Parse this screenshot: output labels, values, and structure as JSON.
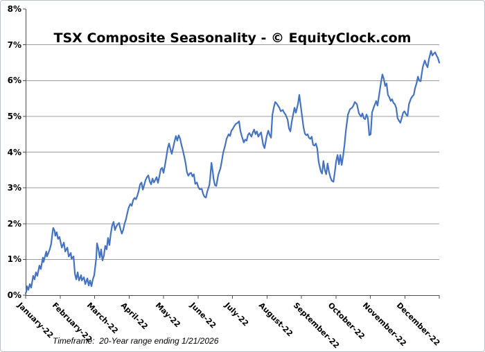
{
  "chart_data": {
    "type": "line",
    "title": "TSX Composite Seasonality - © EquityClock.com",
    "footnote": "Timeframe:  20-Year range ending 1/21/2026",
    "categories": [
      "January-22",
      "February-22",
      "March-22",
      "April-22",
      "May-22",
      "June-22",
      "July-22",
      "August-22",
      "September-22",
      "October-22",
      "November-22",
      "December-22"
    ],
    "y_tick_labels": [
      "0%",
      "1%",
      "2%",
      "3%",
      "4%",
      "5%",
      "6%",
      "7%",
      "8%"
    ],
    "ylim": [
      0,
      8
    ],
    "y_unit": "percent cumulative return",
    "x_unit": "month position (0-12)",
    "grid": "horizontal",
    "legend": "none",
    "line_color": "#4472c4",
    "points": [
      [
        0.0,
        0.05
      ],
      [
        0.02,
        0.1
      ],
      [
        0.04,
        0.25
      ],
      [
        0.08,
        0.15
      ],
      [
        0.12,
        0.31
      ],
      [
        0.16,
        0.21
      ],
      [
        0.22,
        0.54
      ],
      [
        0.26,
        0.44
      ],
      [
        0.3,
        0.64
      ],
      [
        0.34,
        0.54
      ],
      [
        0.4,
        0.83
      ],
      [
        0.44,
        0.73
      ],
      [
        0.5,
        1.05
      ],
      [
        0.52,
        0.93
      ],
      [
        0.6,
        1.22
      ],
      [
        0.62,
        1.08
      ],
      [
        0.7,
        1.28
      ],
      [
        0.74,
        1.43
      ],
      [
        0.78,
        1.75
      ],
      [
        0.8,
        1.88
      ],
      [
        0.84,
        1.8
      ],
      [
        0.86,
        1.66
      ],
      [
        0.9,
        1.76
      ],
      [
        0.94,
        1.57
      ],
      [
        0.98,
        1.63
      ],
      [
        1.05,
        1.33
      ],
      [
        1.11,
        1.47
      ],
      [
        1.15,
        1.22
      ],
      [
        1.21,
        1.33
      ],
      [
        1.25,
        1.08
      ],
      [
        1.31,
        1.18
      ],
      [
        1.33,
        1.02
      ],
      [
        1.39,
        1.08
      ],
      [
        1.43,
        0.6
      ],
      [
        1.47,
        0.44
      ],
      [
        1.51,
        0.64
      ],
      [
        1.55,
        0.41
      ],
      [
        1.61,
        0.56
      ],
      [
        1.63,
        0.41
      ],
      [
        1.69,
        0.5
      ],
      [
        1.73,
        0.31
      ],
      [
        1.79,
        0.47
      ],
      [
        1.83,
        0.27
      ],
      [
        1.87,
        0.41
      ],
      [
        1.91,
        0.25
      ],
      [
        1.95,
        0.44
      ],
      [
        1.99,
        0.56
      ],
      [
        2.05,
        1.05
      ],
      [
        2.07,
        1.45
      ],
      [
        2.11,
        1.3
      ],
      [
        2.15,
        1.05
      ],
      [
        2.19,
        1.28
      ],
      [
        2.23,
        0.97
      ],
      [
        2.27,
        1.1
      ],
      [
        2.31,
        1.38
      ],
      [
        2.35,
        1.28
      ],
      [
        2.39,
        1.6
      ],
      [
        2.43,
        1.4
      ],
      [
        2.47,
        1.72
      ],
      [
        2.51,
        1.95
      ],
      [
        2.55,
        2.05
      ],
      [
        2.59,
        1.82
      ],
      [
        2.63,
        1.92
      ],
      [
        2.67,
        1.98
      ],
      [
        2.71,
        2.02
      ],
      [
        2.75,
        1.85
      ],
      [
        2.79,
        1.72
      ],
      [
        2.83,
        1.82
      ],
      [
        2.87,
        2.0
      ],
      [
        2.91,
        2.12
      ],
      [
        2.95,
        2.3
      ],
      [
        2.99,
        2.45
      ],
      [
        3.04,
        2.55
      ],
      [
        3.08,
        2.5
      ],
      [
        3.12,
        2.66
      ],
      [
        3.16,
        2.72
      ],
      [
        3.2,
        2.68
      ],
      [
        3.24,
        2.78
      ],
      [
        3.28,
        2.92
      ],
      [
        3.32,
        3.1
      ],
      [
        3.36,
        3.15
      ],
      [
        3.4,
        2.95
      ],
      [
        3.44,
        3.08
      ],
      [
        3.48,
        3.22
      ],
      [
        3.52,
        3.3
      ],
      [
        3.56,
        3.35
      ],
      [
        3.6,
        3.18
      ],
      [
        3.64,
        3.1
      ],
      [
        3.68,
        3.26
      ],
      [
        3.72,
        3.15
      ],
      [
        3.76,
        3.22
      ],
      [
        3.8,
        3.3
      ],
      [
        3.84,
        3.14
      ],
      [
        3.88,
        3.32
      ],
      [
        3.92,
        3.52
      ],
      [
        3.96,
        3.56
      ],
      [
        4.0,
        3.42
      ],
      [
        4.04,
        3.62
      ],
      [
        4.08,
        3.85
      ],
      [
        4.12,
        4.1
      ],
      [
        4.16,
        4.24
      ],
      [
        4.2,
        4.08
      ],
      [
        4.24,
        3.95
      ],
      [
        4.28,
        4.12
      ],
      [
        4.32,
        4.3
      ],
      [
        4.36,
        4.45
      ],
      [
        4.4,
        4.32
      ],
      [
        4.44,
        4.47
      ],
      [
        4.48,
        4.38
      ],
      [
        4.52,
        4.2
      ],
      [
        4.56,
        4.05
      ],
      [
        4.6,
        3.88
      ],
      [
        4.64,
        3.7
      ],
      [
        4.68,
        3.44
      ],
      [
        4.72,
        3.34
      ],
      [
        4.76,
        3.4
      ],
      [
        4.8,
        3.42
      ],
      [
        4.84,
        3.32
      ],
      [
        4.88,
        3.38
      ],
      [
        4.92,
        3.11
      ],
      [
        4.97,
        3.15
      ],
      [
        5.01,
        3.02
      ],
      [
        5.05,
        2.96
      ],
      [
        5.11,
        2.97
      ],
      [
        5.15,
        2.83
      ],
      [
        5.19,
        2.75
      ],
      [
        5.23,
        2.73
      ],
      [
        5.27,
        2.9
      ],
      [
        5.33,
        3.08
      ],
      [
        5.35,
        3.25
      ],
      [
        5.39,
        3.7
      ],
      [
        5.43,
        3.45
      ],
      [
        5.45,
        3.27
      ],
      [
        5.49,
        3.08
      ],
      [
        5.53,
        3.05
      ],
      [
        5.59,
        3.37
      ],
      [
        5.65,
        3.54
      ],
      [
        5.69,
        3.75
      ],
      [
        5.73,
        3.98
      ],
      [
        5.79,
        4.2
      ],
      [
        5.83,
        4.37
      ],
      [
        5.89,
        4.5
      ],
      [
        5.93,
        4.45
      ],
      [
        5.97,
        4.6
      ],
      [
        6.01,
        4.65
      ],
      [
        6.05,
        4.72
      ],
      [
        6.09,
        4.78
      ],
      [
        6.15,
        4.82
      ],
      [
        6.19,
        4.86
      ],
      [
        6.23,
        4.6
      ],
      [
        6.27,
        4.45
      ],
      [
        6.33,
        4.27
      ],
      [
        6.37,
        4.35
      ],
      [
        6.41,
        4.32
      ],
      [
        6.45,
        4.48
      ],
      [
        6.49,
        4.53
      ],
      [
        6.55,
        4.43
      ],
      [
        6.59,
        4.55
      ],
      [
        6.63,
        4.63
      ],
      [
        6.67,
        4.5
      ],
      [
        6.71,
        4.58
      ],
      [
        6.75,
        4.43
      ],
      [
        6.79,
        4.5
      ],
      [
        6.83,
        4.55
      ],
      [
        6.89,
        4.21
      ],
      [
        6.93,
        4.11
      ],
      [
        6.99,
        4.43
      ],
      [
        7.04,
        4.6
      ],
      [
        7.08,
        4.48
      ],
      [
        7.12,
        4.4
      ],
      [
        7.16,
        5.05
      ],
      [
        7.2,
        5.25
      ],
      [
        7.24,
        5.4
      ],
      [
        7.28,
        5.36
      ],
      [
        7.32,
        5.3
      ],
      [
        7.36,
        5.24
      ],
      [
        7.4,
        5.14
      ],
      [
        7.46,
        5.18
      ],
      [
        7.5,
        5.1
      ],
      [
        7.54,
        5.05
      ],
      [
        7.6,
        4.91
      ],
      [
        7.64,
        4.66
      ],
      [
        7.68,
        4.58
      ],
      [
        7.72,
        4.85
      ],
      [
        7.76,
        5.05
      ],
      [
        7.8,
        5.24
      ],
      [
        7.84,
        5.1
      ],
      [
        7.9,
        5.34
      ],
      [
        7.94,
        5.6
      ],
      [
        7.98,
        5.3
      ],
      [
        8.02,
        5.0
      ],
      [
        8.06,
        4.7
      ],
      [
        8.1,
        4.52
      ],
      [
        8.14,
        4.47
      ],
      [
        8.18,
        4.5
      ],
      [
        8.22,
        4.4
      ],
      [
        8.26,
        4.37
      ],
      [
        8.3,
        4.43
      ],
      [
        8.34,
        4.2
      ],
      [
        8.38,
        4.18
      ],
      [
        8.42,
        4.24
      ],
      [
        8.46,
        4.1
      ],
      [
        8.5,
        3.73
      ],
      [
        8.56,
        3.47
      ],
      [
        8.6,
        3.4
      ],
      [
        8.64,
        3.75
      ],
      [
        8.68,
        3.5
      ],
      [
        8.72,
        3.38
      ],
      [
        8.76,
        3.68
      ],
      [
        8.8,
        3.45
      ],
      [
        8.84,
        3.3
      ],
      [
        8.88,
        3.2
      ],
      [
        8.93,
        3.17
      ],
      [
        8.97,
        3.45
      ],
      [
        9.01,
        3.75
      ],
      [
        9.05,
        3.92
      ],
      [
        9.09,
        3.66
      ],
      [
        9.13,
        3.92
      ],
      [
        9.17,
        3.64
      ],
      [
        9.21,
        3.89
      ],
      [
        9.25,
        4.2
      ],
      [
        9.29,
        4.6
      ],
      [
        9.35,
        5.05
      ],
      [
        9.41,
        5.2
      ],
      [
        9.47,
        5.24
      ],
      [
        9.51,
        5.3
      ],
      [
        9.55,
        5.4
      ],
      [
        9.61,
        5.34
      ],
      [
        9.67,
        5.08
      ],
      [
        9.73,
        4.99
      ],
      [
        9.77,
        5.08
      ],
      [
        9.81,
        4.95
      ],
      [
        9.85,
        4.92
      ],
      [
        9.89,
        5.05
      ],
      [
        9.93,
        4.95
      ],
      [
        9.97,
        4.47
      ],
      [
        10.01,
        4.5
      ],
      [
        10.05,
        5.11
      ],
      [
        10.11,
        5.28
      ],
      [
        10.17,
        5.43
      ],
      [
        10.21,
        5.3
      ],
      [
        10.27,
        5.69
      ],
      [
        10.31,
        5.95
      ],
      [
        10.35,
        6.17
      ],
      [
        10.39,
        6.05
      ],
      [
        10.43,
        5.85
      ],
      [
        10.47,
        5.92
      ],
      [
        10.51,
        5.6
      ],
      [
        10.55,
        5.53
      ],
      [
        10.59,
        5.43
      ],
      [
        10.63,
        5.48
      ],
      [
        10.67,
        5.38
      ],
      [
        10.71,
        5.34
      ],
      [
        10.75,
        5.24
      ],
      [
        10.79,
        4.95
      ],
      [
        10.83,
        4.88
      ],
      [
        10.87,
        4.82
      ],
      [
        10.91,
        4.95
      ],
      [
        10.95,
        5.1
      ],
      [
        10.99,
        5.14
      ],
      [
        11.04,
        5.05
      ],
      [
        11.08,
        5.01
      ],
      [
        11.12,
        5.34
      ],
      [
        11.18,
        5.5
      ],
      [
        11.22,
        5.56
      ],
      [
        11.26,
        5.6
      ],
      [
        11.3,
        5.8
      ],
      [
        11.34,
        5.92
      ],
      [
        11.38,
        6.11
      ],
      [
        11.42,
        6.0
      ],
      [
        11.46,
        5.98
      ],
      [
        11.52,
        6.37
      ],
      [
        11.58,
        6.56
      ],
      [
        11.62,
        6.45
      ],
      [
        11.66,
        6.37
      ],
      [
        11.7,
        6.6
      ],
      [
        11.76,
        6.83
      ],
      [
        11.8,
        6.7
      ],
      [
        11.84,
        6.75
      ],
      [
        11.88,
        6.79
      ],
      [
        11.92,
        6.7
      ],
      [
        11.96,
        6.63
      ],
      [
        12.0,
        6.5
      ]
    ]
  }
}
